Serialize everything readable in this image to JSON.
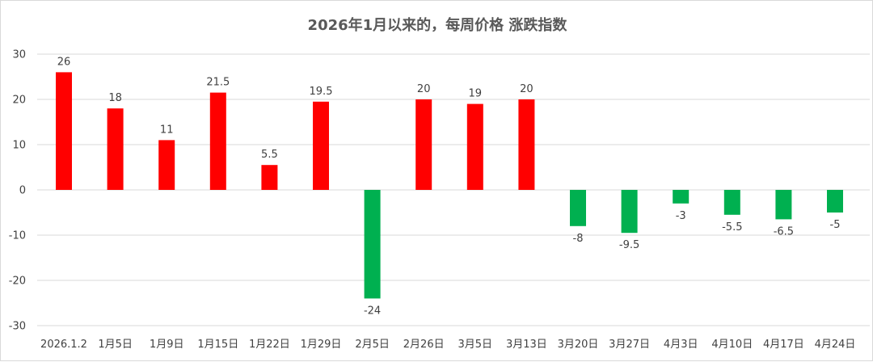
{
  "chart_data": {
    "type": "bar",
    "title": "2026年1月以来的，每周价格 涨跌指数",
    "xlabel": "",
    "ylabel": "",
    "ylim": [
      -30,
      30
    ],
    "yticks": [
      30,
      20,
      10,
      0,
      -10,
      -20,
      -30
    ],
    "grid": true,
    "categories": [
      "2026.1.2",
      "1月5日",
      "1月9日",
      "1月15日",
      "1月22日",
      "1月29日",
      "2月5日",
      "2月26日",
      "3月5日",
      "3月13日",
      "3月20日",
      "3月27日",
      "4月3日",
      "4月10日",
      "4月17日",
      "4月24日"
    ],
    "values": [
      26,
      18,
      11,
      21.5,
      5.5,
      19.5,
      -24,
      20,
      19,
      20,
      -8,
      -9.5,
      -3,
      -5.5,
      -6.5,
      -5
    ],
    "value_labels": [
      "26",
      "18",
      "11",
      "21.5",
      "5.5",
      "19.5",
      "-24",
      "20",
      "19",
      "20",
      "-8",
      "-9.5",
      "-3",
      "-5.5",
      "-6.5",
      "-5"
    ],
    "colors": {
      "positive": "#ff0000",
      "negative": "#00b050"
    }
  }
}
